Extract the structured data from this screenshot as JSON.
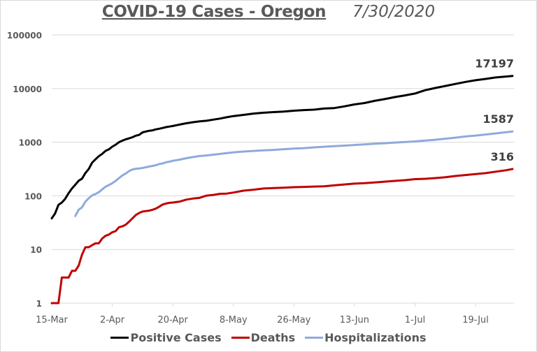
{
  "chart_data": {
    "type": "line",
    "title": "COVID-19 Cases - Oregon",
    "subtitle": "7/30/2020",
    "xlabel": "",
    "ylabel": "",
    "yscale": "log",
    "ylim": [
      1,
      100000
    ],
    "y_ticks": [
      "1",
      "10",
      "100",
      "1000",
      "10000",
      "100000"
    ],
    "y_tick_values": [
      1,
      10,
      100,
      1000,
      10000,
      100000
    ],
    "x_start_date": "15-Mar",
    "x_days_total": 137,
    "x_tick_labels": [
      "15-Mar",
      "2-Apr",
      "20-Apr",
      "8-May",
      "26-May",
      "13-Jun",
      "1-Jul",
      "19-Jul"
    ],
    "x_tick_days": [
      0,
      18,
      36,
      54,
      72,
      90,
      108,
      126
    ],
    "grid": "horizontal",
    "legend_position": "bottom",
    "series": [
      {
        "name": "Positive Cases",
        "color": "#000000",
        "end_label": "17197",
        "points": [
          [
            0,
            38
          ],
          [
            1,
            47
          ],
          [
            2,
            68
          ],
          [
            3,
            75
          ],
          [
            4,
            88
          ],
          [
            5,
            112
          ],
          [
            6,
            137
          ],
          [
            7,
            161
          ],
          [
            8,
            191
          ],
          [
            9,
            209
          ],
          [
            10,
            266
          ],
          [
            11,
            316
          ],
          [
            12,
            414
          ],
          [
            13,
            479
          ],
          [
            14,
            548
          ],
          [
            15,
            606
          ],
          [
            16,
            690
          ],
          [
            17,
            736
          ],
          [
            18,
            826
          ],
          [
            19,
            899
          ],
          [
            20,
            999
          ],
          [
            21,
            1068
          ],
          [
            22,
            1132
          ],
          [
            23,
            1181
          ],
          [
            24,
            1239
          ],
          [
            25,
            1321
          ],
          [
            26,
            1371
          ],
          [
            27,
            1527
          ],
          [
            28,
            1584
          ],
          [
            29,
            1633
          ],
          [
            30,
            1663
          ],
          [
            31,
            1736
          ],
          [
            32,
            1785
          ],
          [
            33,
            1844
          ],
          [
            34,
            1910
          ],
          [
            35,
            1956
          ],
          [
            36,
            2002
          ],
          [
            38,
            2127
          ],
          [
            40,
            2253
          ],
          [
            42,
            2354
          ],
          [
            44,
            2446
          ],
          [
            46,
            2510
          ],
          [
            48,
            2635
          ],
          [
            50,
            2759
          ],
          [
            52,
            2916
          ],
          [
            54,
            3068
          ],
          [
            57,
            3227
          ],
          [
            60,
            3416
          ],
          [
            63,
            3541
          ],
          [
            66,
            3636
          ],
          [
            69,
            3727
          ],
          [
            72,
            3864
          ],
          [
            75,
            3967
          ],
          [
            78,
            4038
          ],
          [
            81,
            4243
          ],
          [
            84,
            4335
          ],
          [
            87,
            4662
          ],
          [
            90,
            5060
          ],
          [
            93,
            5377
          ],
          [
            96,
            5907
          ],
          [
            99,
            6366
          ],
          [
            102,
            6937
          ],
          [
            105,
            7444
          ],
          [
            108,
            8094
          ],
          [
            111,
            9294
          ],
          [
            114,
            10230
          ],
          [
            117,
            11188
          ],
          [
            120,
            12170
          ],
          [
            123,
            13305
          ],
          [
            126,
            14308
          ],
          [
            129,
            15139
          ],
          [
            132,
            16104
          ],
          [
            135,
            16758
          ],
          [
            137,
            17197
          ]
        ]
      },
      {
        "name": "Deaths",
        "color": "#c00000",
        "end_label": "316",
        "points": [
          [
            0,
            1
          ],
          [
            2,
            1
          ],
          [
            3,
            3
          ],
          [
            4,
            3
          ],
          [
            5,
            3
          ],
          [
            6,
            4
          ],
          [
            7,
            4
          ],
          [
            8,
            5
          ],
          [
            9,
            8
          ],
          [
            10,
            11
          ],
          [
            11,
            11
          ],
          [
            12,
            12
          ],
          [
            13,
            13
          ],
          [
            14,
            13
          ],
          [
            15,
            16
          ],
          [
            16,
            18
          ],
          [
            17,
            19
          ],
          [
            18,
            21
          ],
          [
            19,
            22
          ],
          [
            20,
            26
          ],
          [
            21,
            27
          ],
          [
            22,
            29
          ],
          [
            23,
            33
          ],
          [
            24,
            38
          ],
          [
            25,
            44
          ],
          [
            26,
            48
          ],
          [
            27,
            51
          ],
          [
            28,
            52
          ],
          [
            29,
            53
          ],
          [
            30,
            55
          ],
          [
            31,
            58
          ],
          [
            32,
            63
          ],
          [
            33,
            69
          ],
          [
            34,
            72
          ],
          [
            35,
            74
          ],
          [
            36,
            75
          ],
          [
            38,
            78
          ],
          [
            40,
            85
          ],
          [
            42,
            89
          ],
          [
            44,
            92
          ],
          [
            46,
            101
          ],
          [
            48,
            104
          ],
          [
            50,
            109
          ],
          [
            52,
            110
          ],
          [
            54,
            115
          ],
          [
            57,
            125
          ],
          [
            60,
            130
          ],
          [
            63,
            137
          ],
          [
            66,
            140
          ],
          [
            69,
            142
          ],
          [
            72,
            145
          ],
          [
            75,
            147
          ],
          [
            78,
            149
          ],
          [
            81,
            151
          ],
          [
            84,
            157
          ],
          [
            87,
            163
          ],
          [
            90,
            169
          ],
          [
            93,
            172
          ],
          [
            96,
            178
          ],
          [
            99,
            184
          ],
          [
            102,
            190
          ],
          [
            105,
            196
          ],
          [
            108,
            205
          ],
          [
            111,
            208
          ],
          [
            114,
            214
          ],
          [
            117,
            222
          ],
          [
            120,
            234
          ],
          [
            123,
            244
          ],
          [
            126,
            254
          ],
          [
            129,
            265
          ],
          [
            132,
            282
          ],
          [
            135,
            300
          ],
          [
            137,
            316
          ]
        ]
      },
      {
        "name": "Hospitalizations",
        "color": "#8eaadb",
        "end_label": "1587",
        "points": [
          [
            7,
            42
          ],
          [
            8,
            55
          ],
          [
            9,
            61
          ],
          [
            10,
            78
          ],
          [
            11,
            90
          ],
          [
            12,
            102
          ],
          [
            13,
            108
          ],
          [
            14,
            117
          ],
          [
            15,
            132
          ],
          [
            16,
            148
          ],
          [
            17,
            159
          ],
          [
            18,
            172
          ],
          [
            19,
            190
          ],
          [
            20,
            214
          ],
          [
            21,
            240
          ],
          [
            22,
            261
          ],
          [
            23,
            290
          ],
          [
            24,
            310
          ],
          [
            25,
            320
          ],
          [
            26,
            324
          ],
          [
            27,
            331
          ],
          [
            28,
            342
          ],
          [
            29,
            352
          ],
          [
            30,
            362
          ],
          [
            31,
            373
          ],
          [
            32,
            392
          ],
          [
            33,
            402
          ],
          [
            34,
            423
          ],
          [
            35,
            433
          ],
          [
            36,
            451
          ],
          [
            38,
            473
          ],
          [
            40,
            504
          ],
          [
            42,
            528
          ],
          [
            44,
            553
          ],
          [
            46,
            566
          ],
          [
            48,
            585
          ],
          [
            50,
            604
          ],
          [
            52,
            625
          ],
          [
            54,
            648
          ],
          [
            57,
            670
          ],
          [
            60,
            688
          ],
          [
            63,
            705
          ],
          [
            66,
            720
          ],
          [
            69,
            740
          ],
          [
            72,
            760
          ],
          [
            75,
            775
          ],
          [
            78,
            800
          ],
          [
            81,
            822
          ],
          [
            84,
            845
          ],
          [
            87,
            864
          ],
          [
            90,
            888
          ],
          [
            93,
            910
          ],
          [
            96,
            935
          ],
          [
            99,
            955
          ],
          [
            102,
            985
          ],
          [
            105,
            1005
          ],
          [
            108,
            1035
          ],
          [
            111,
            1075
          ],
          [
            114,
            1110
          ],
          [
            117,
            1160
          ],
          [
            120,
            1215
          ],
          [
            123,
            1280
          ],
          [
            126,
            1330
          ],
          [
            129,
            1390
          ],
          [
            132,
            1460
          ],
          [
            135,
            1530
          ],
          [
            137,
            1587
          ]
        ]
      }
    ]
  }
}
